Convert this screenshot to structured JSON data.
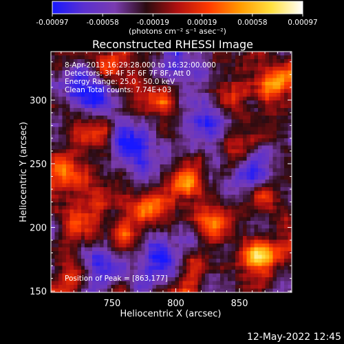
{
  "chart_data": {
    "type": "heatmap",
    "title": "Reconstructed RHESSI Image",
    "xlabel": "Heliocentric X (arcsec)",
    "ylabel": "Heliocentric Y (arcsec)",
    "xlim": [
      702,
      891
    ],
    "ylim": [
      149,
      338
    ],
    "x_ticks": [
      750,
      800,
      850
    ],
    "y_ticks": [
      150,
      200,
      250,
      300
    ],
    "colorbar": {
      "min": -0.00097,
      "max": 0.00097,
      "tick_values": [
        -0.00097,
        -0.00058,
        -0.00019,
        0.00019,
        0.00058,
        0.00097
      ],
      "tick_labels": [
        "-0.00097",
        "-0.00058",
        "-0.00019",
        "0.00019",
        "0.00058",
        "0.00097"
      ],
      "unit_label": "(photons cm⁻² s⁻¹ asec⁻²)",
      "colors": [
        "#1818ff",
        "#5a30d0",
        "#7a3cb0",
        "#2a0b10",
        "#b01010",
        "#ff3a00",
        "#ff9a00",
        "#ffe040",
        "#ffffff"
      ]
    },
    "annotations": [
      "8-Apr-2013 16:29:28.000 to 16:32:00.000",
      "Detectors: 3F 4F 5F 6F 7F 8F, Att 0",
      "Energy Range: 25.0 - 50.0 keV",
      "Clean     Total counts: 7.74E+03"
    ],
    "peak_label": "Position of Peak = [863,177]",
    "peak": [
      863,
      177
    ],
    "hot_spots": [
      {
        "x": 863,
        "y": 177,
        "v": 0.00097
      },
      {
        "x": 878,
        "y": 313,
        "v": 0.00085
      },
      {
        "x": 745,
        "y": 325,
        "v": 0.0007
      },
      {
        "x": 790,
        "y": 300,
        "v": 0.00065
      },
      {
        "x": 808,
        "y": 237,
        "v": 0.0006
      },
      {
        "x": 735,
        "y": 272,
        "v": 0.00055
      },
      {
        "x": 712,
        "y": 243,
        "v": 0.0005
      },
      {
        "x": 780,
        "y": 215,
        "v": 0.00055
      },
      {
        "x": 850,
        "y": 260,
        "v": 0.0005
      },
      {
        "x": 760,
        "y": 190,
        "v": 0.0005
      },
      {
        "x": 830,
        "y": 205,
        "v": 0.0006
      },
      {
        "x": 812,
        "y": 165,
        "v": 0.00045
      },
      {
        "x": 725,
        "y": 200,
        "v": 0.00045
      },
      {
        "x": 870,
        "y": 225,
        "v": 0.0005
      },
      {
        "x": 760,
        "y": 245,
        "v": 0.00045
      },
      {
        "x": 840,
        "y": 300,
        "v": 0.00045
      },
      {
        "x": 720,
        "y": 160,
        "v": 0.0004
      }
    ],
    "cold_spots": [
      {
        "x": 765,
        "y": 260,
        "v": -0.0009
      },
      {
        "x": 730,
        "y": 308,
        "v": -0.0008
      },
      {
        "x": 860,
        "y": 242,
        "v": -0.0008
      },
      {
        "x": 790,
        "y": 177,
        "v": -0.0007
      },
      {
        "x": 745,
        "y": 168,
        "v": -0.0007
      },
      {
        "x": 805,
        "y": 325,
        "v": -0.0006
      },
      {
        "x": 822,
        "y": 283,
        "v": -0.0006
      }
    ]
  },
  "footer": {
    "timestamp": "12-May-2022 12:45"
  }
}
